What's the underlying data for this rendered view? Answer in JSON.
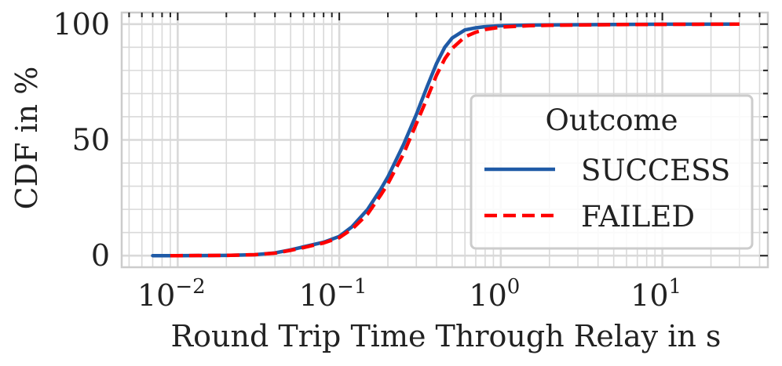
{
  "chart_data": {
    "type": "line",
    "title": "",
    "xlabel": "Round Trip Time Through Relay in s",
    "ylabel": "CDF in %",
    "x_scale": "log",
    "xlim": [
      0.0045,
      45
    ],
    "ylim": [
      -5,
      105
    ],
    "grid": true,
    "x_ticks": [
      {
        "value": 0.01,
        "base": "10",
        "exp": "−2"
      },
      {
        "value": 0.1,
        "base": "10",
        "exp": "−1"
      },
      {
        "value": 1,
        "base": "10",
        "exp": "0"
      },
      {
        "value": 10,
        "base": "10",
        "exp": "1"
      }
    ],
    "y_ticks": [
      0,
      50,
      100
    ],
    "legend": {
      "title": "Outcome",
      "position": "center-right"
    },
    "series": [
      {
        "name": "SUCCESS",
        "color": "#1f5aa6",
        "style": "solid",
        "x": [
          0.007,
          0.01,
          0.02,
          0.03,
          0.04,
          0.05,
          0.06,
          0.08,
          0.1,
          0.12,
          0.15,
          0.18,
          0.2,
          0.25,
          0.3,
          0.35,
          0.4,
          0.45,
          0.5,
          0.6,
          0.7,
          0.8,
          1.0,
          1.5,
          2,
          5,
          10,
          28
        ],
        "y": [
          0,
          0,
          0.1,
          0.4,
          1.2,
          2.5,
          3.8,
          5.8,
          8.3,
          12.5,
          20,
          28.5,
          34,
          48,
          61,
          73,
          83,
          90,
          94,
          97.5,
          98.4,
          98.9,
          99.3,
          99.6,
          99.7,
          99.85,
          99.95,
          100
        ]
      },
      {
        "name": "FAILED",
        "color": "#ff0000",
        "style": "dashed",
        "x": [
          0.009,
          0.01,
          0.02,
          0.03,
          0.04,
          0.05,
          0.06,
          0.08,
          0.1,
          0.12,
          0.15,
          0.18,
          0.2,
          0.25,
          0.3,
          0.35,
          0.4,
          0.45,
          0.5,
          0.6,
          0.7,
          0.8,
          1.0,
          1.5,
          2,
          5,
          10,
          30
        ],
        "y": [
          0,
          0,
          0.1,
          0.4,
          1.1,
          2.3,
          3.5,
          5.5,
          7.8,
          11.5,
          18,
          26,
          31,
          44,
          57,
          68,
          78,
          85,
          89.5,
          94.5,
          96.5,
          97.7,
          98.7,
          99.3,
          99.5,
          99.8,
          99.9,
          100
        ]
      }
    ]
  }
}
